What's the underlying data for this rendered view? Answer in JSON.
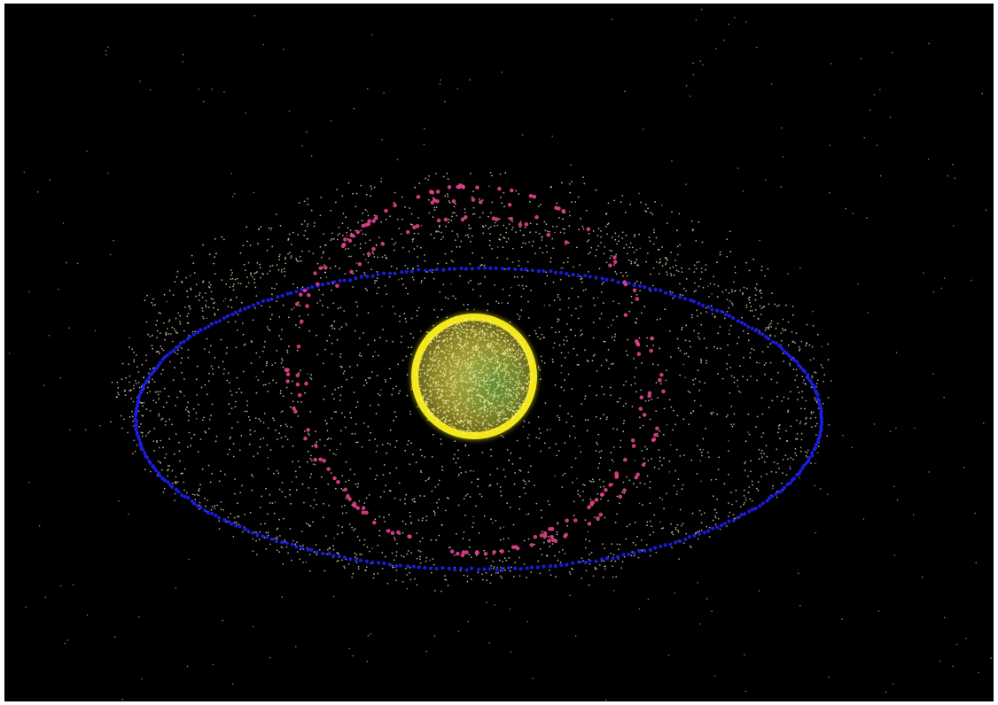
{
  "scene": {
    "background_color": "#000000",
    "frame_color": "#ffffff",
    "earth": {
      "glow_color": "#f3e81c",
      "core_color": "#9f9a2a",
      "land_tint": "#4c8a3a"
    },
    "debris_color": "#e8e6c0",
    "geo_ring_color": "#1b1ee6",
    "meo_color": "#e0408c"
  }
}
